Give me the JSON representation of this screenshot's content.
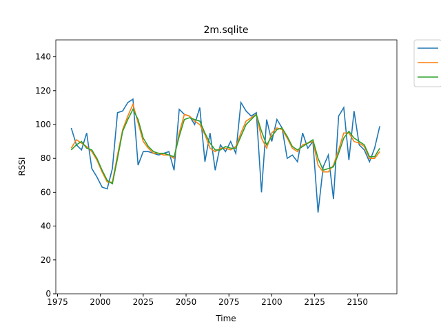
{
  "chart_data": {
    "type": "line",
    "title": "2m.sqlite",
    "x_label": "Time",
    "y_label": "RSSI",
    "x": [
      1983,
      1986,
      1989,
      1992,
      1995,
      1998,
      2001,
      2004,
      2007,
      2010,
      2013,
      2016,
      2019,
      2022,
      2025,
      2028,
      2031,
      2034,
      2037,
      2040,
      2043,
      2046,
      2049,
      2052,
      2055,
      2058,
      2061,
      2064,
      2067,
      2070,
      2073,
      2076,
      2079,
      2082,
      2085,
      2088,
      2091,
      2094,
      2097,
      2100,
      2103,
      2106,
      2109,
      2112,
      2115,
      2118,
      2121,
      2124,
      2127,
      2130,
      2133,
      2136,
      2139,
      2142,
      2145,
      2148,
      2151,
      2154,
      2157,
      2160,
      2163
    ],
    "series": [
      {
        "color": "#1f77b4",
        "values": [
          98,
          88,
          85,
          95,
          74,
          69,
          63,
          62,
          74,
          107,
          108,
          113,
          115,
          76,
          84,
          84,
          83,
          82,
          83,
          84,
          73,
          109,
          106,
          105,
          100,
          110,
          78,
          95,
          73,
          88,
          84,
          90,
          83,
          113,
          108,
          105,
          107,
          60,
          103,
          90,
          103,
          98,
          80,
          82,
          78,
          95,
          86,
          90,
          48,
          75,
          82,
          56,
          105,
          110,
          79,
          108,
          88,
          85,
          78,
          86,
          99
        ]
      },
      {
        "color": "#ff7f0e",
        "values": [
          86,
          91,
          89,
          87,
          84,
          79,
          72,
          66,
          66,
          82,
          97,
          105,
          112,
          101,
          90,
          86,
          83,
          83,
          82,
          82,
          80,
          95,
          106,
          105,
          102,
          100,
          94,
          86,
          84,
          86,
          86,
          85,
          87,
          95,
          102,
          104,
          106,
          92,
          86,
          95,
          98,
          97,
          92,
          86,
          84,
          88,
          89,
          90,
          76,
          72,
          72,
          76,
          85,
          95,
          95,
          90,
          89,
          87,
          80,
          80,
          84
        ]
      },
      {
        "color": "#2ca02c",
        "values": [
          85,
          88,
          90,
          86,
          85,
          80,
          73,
          67,
          65,
          80,
          96,
          103,
          109,
          103,
          92,
          87,
          84,
          83,
          83,
          82,
          81,
          93,
          103,
          104,
          103,
          102,
          95,
          89,
          85,
          85,
          87,
          86,
          86,
          93,
          100,
          103,
          106,
          96,
          88,
          93,
          97,
          98,
          93,
          87,
          85,
          87,
          89,
          91,
          80,
          73,
          74,
          75,
          83,
          92,
          96,
          92,
          90,
          88,
          81,
          81,
          86
        ]
      }
    ],
    "xlim": [
      1974,
      2173
    ],
    "ylim": [
      0,
      150
    ],
    "xticks": [
      1975,
      2000,
      2025,
      2050,
      2075,
      2100,
      2125,
      2150
    ],
    "yticks": [
      0,
      20,
      40,
      60,
      80,
      100,
      120,
      140
    ]
  }
}
